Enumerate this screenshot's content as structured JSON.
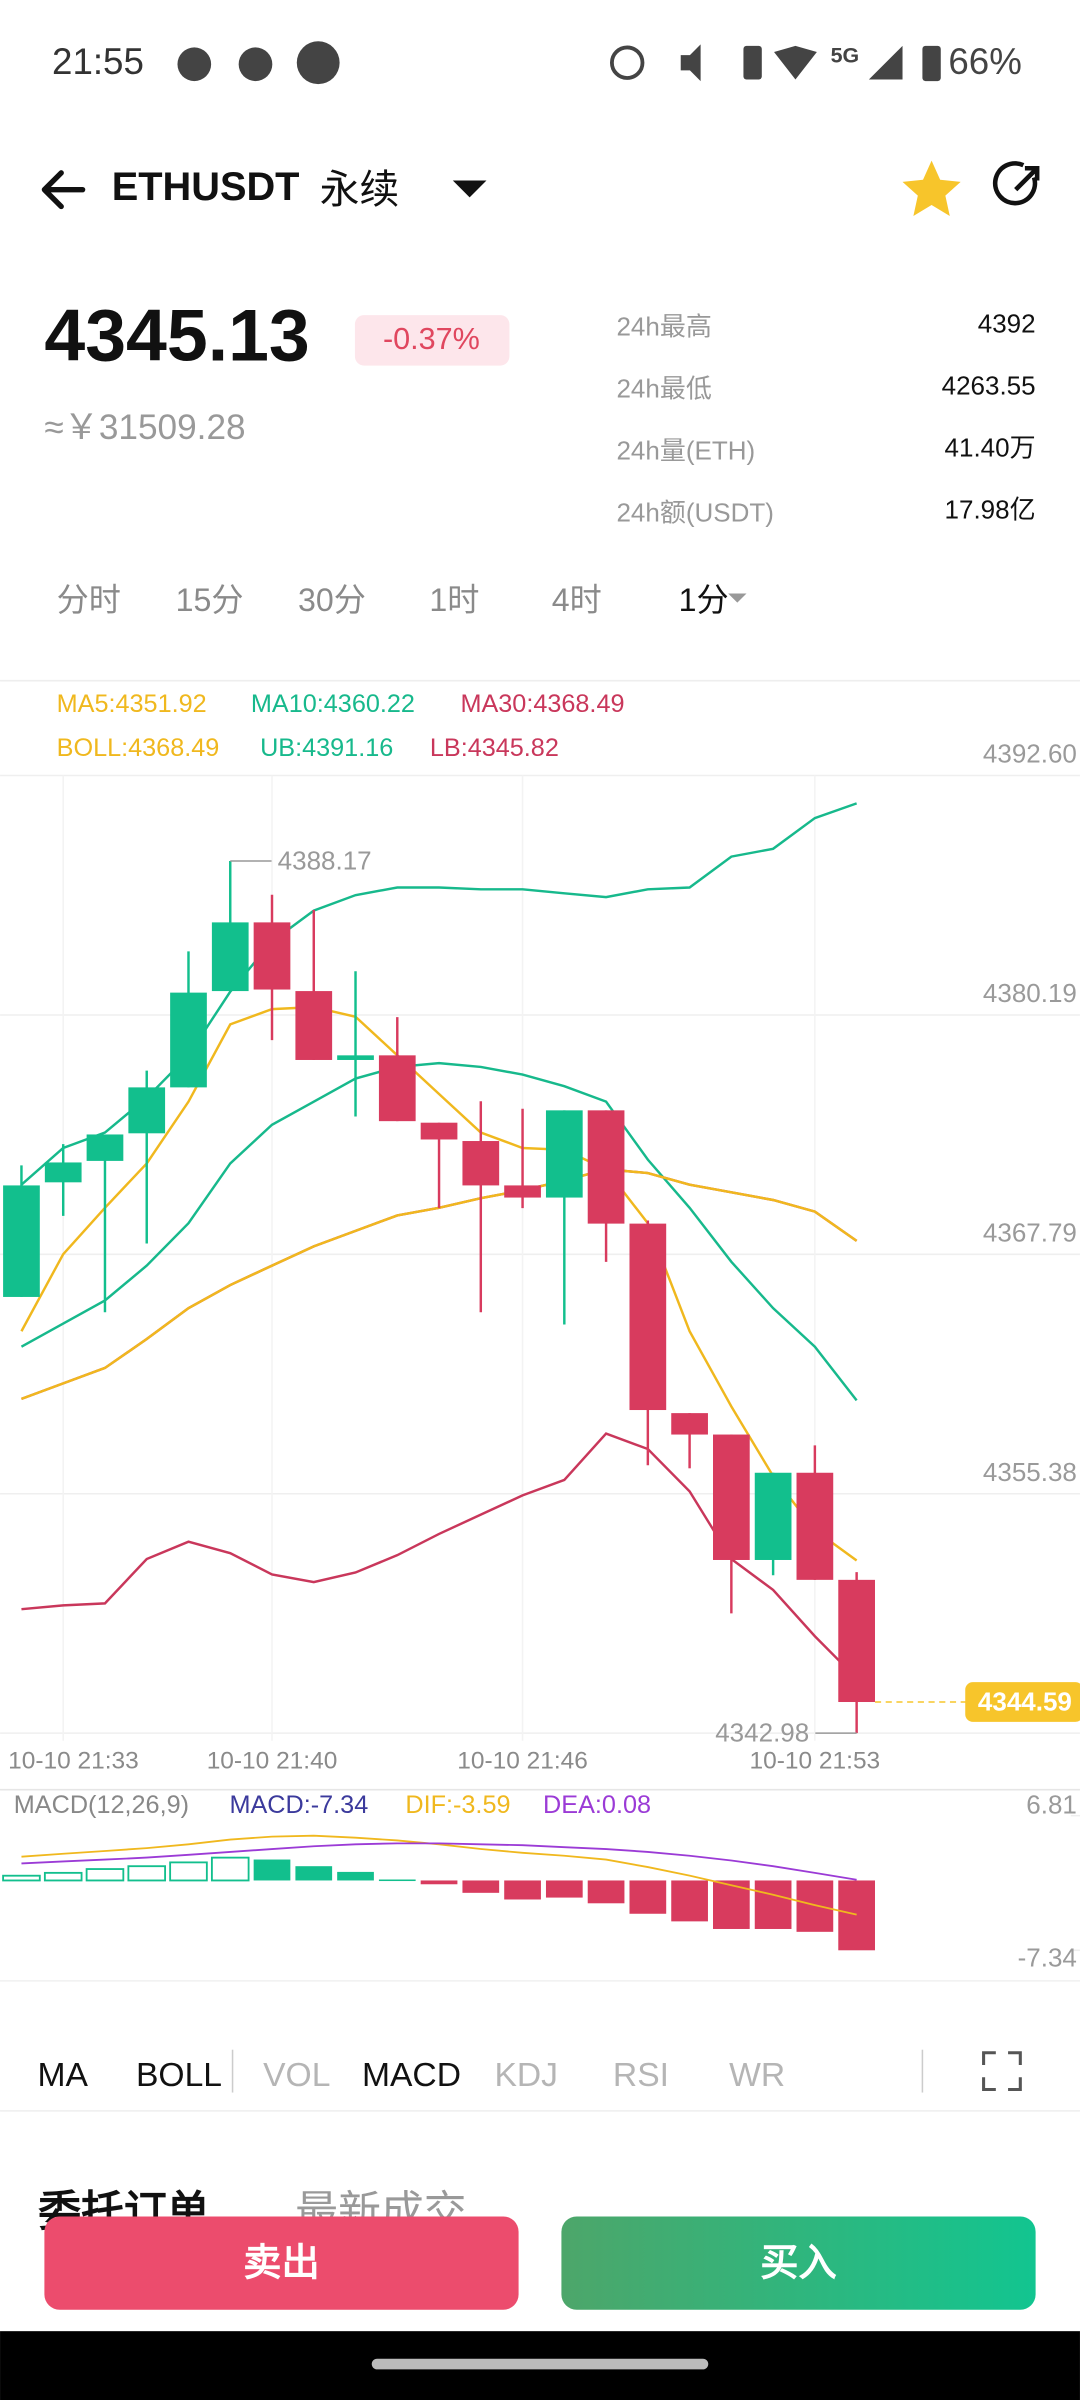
{
  "status_bar": {
    "time": "21:55",
    "network": "5G",
    "battery": "66%"
  },
  "header": {
    "symbol": "ETHUSDT",
    "contract": "永续"
  },
  "ticker": {
    "price": "4345.13",
    "change": "-0.37%",
    "fiat": "≈￥31509.28"
  },
  "stats": [
    {
      "label": "24h最高",
      "value": "4392"
    },
    {
      "label": "24h最低",
      "value": "4263.55"
    },
    {
      "label": "24h量(ETH)",
      "value": "41.40万"
    },
    {
      "label": "24h额(USDT)",
      "value": "17.98亿"
    }
  ],
  "intervals": {
    "items": [
      "分时",
      "15分",
      "30分",
      "1时",
      "4时",
      "1分"
    ],
    "active": 5
  },
  "chart_data": [
    {
      "type": "candlestick",
      "up_color": "#12bf8d",
      "down_color": "#d83b5e",
      "categories": [
        null,
        "10-10 21:33",
        null,
        null,
        null,
        null,
        "10-10 21:40",
        null,
        null,
        null,
        null,
        null,
        "10-10 21:46",
        null,
        null,
        null,
        null,
        null,
        null,
        "10-10 21:53",
        null
      ],
      "open": [
        4365.58,
        4371.52,
        4372.63,
        4374.06,
        4376.44,
        4381.43,
        4384.99,
        4381.43,
        4377.86,
        4378.1,
        4374.61,
        4373.66,
        4371.36,
        4370.73,
        4375.25,
        4369.38,
        4359.56,
        4358.45,
        4351.95,
        4356.47,
        4350.92
      ],
      "high": [
        4372.4,
        4373.5,
        4374.0,
        4377.31,
        4383.49,
        4388.17,
        4386.42,
        4385.63,
        4382.46,
        4380.08,
        4374.61,
        4375.72,
        4375.33,
        4375.25,
        4375.25,
        4369.54,
        4359.56,
        4358.45,
        4356.47,
        4357.89,
        4351.32
      ],
      "low": [
        4365.58,
        4369.78,
        4364.79,
        4368.35,
        4376.44,
        4381.43,
        4378.89,
        4377.86,
        4374.93,
        4374.69,
        4370.18,
        4364.79,
        4370.18,
        4364.15,
        4367.4,
        4356.86,
        4356.7,
        4349.18,
        4351.16,
        4350.92,
        4342.98
      ],
      "close": [
        4371.36,
        4372.55,
        4374.0,
        4376.44,
        4381.35,
        4384.99,
        4381.51,
        4377.86,
        4378.1,
        4374.69,
        4373.74,
        4371.36,
        4370.73,
        4375.25,
        4369.38,
        4359.72,
        4358.45,
        4351.95,
        4356.47,
        4350.92,
        4344.59
      ],
      "series": [
        {
          "name": "MA5:4351.92",
          "color": "#f0b81e",
          "values": [
            4363.8,
            4367.8,
            4370.2,
            4372.5,
            4375.7,
            4379.7,
            4380.5,
            4380.6,
            4380.1,
            4378.1,
            4376.1,
            4374.1,
            4373.3,
            4373.2,
            4372.2,
            4369.4,
            4363.8,
            4359.9,
            4356.3,
            4353.5,
            4351.92
          ]
        },
        {
          "name": "MA10:4360.22",
          "color": "#17b98c",
          "values": [
            4363.0,
            4364.2,
            4365.4,
            4367.2,
            4369.4,
            4372.5,
            4374.5,
            4375.7,
            4376.9,
            4377.5,
            4377.7,
            4377.5,
            4377.1,
            4376.5,
            4375.7,
            4372.7,
            4370.2,
            4367.4,
            4365.0,
            4363.0,
            4360.22
          ]
        },
        {
          "name": "MA30:4368.49",
          "color": "#c9375b",
          "values": [
            4360.3,
            4361.1,
            4361.9,
            4363.4,
            4365.0,
            4366.2,
            4367.2,
            4368.2,
            4369.0,
            4369.8,
            4370.2,
            4370.7,
            4371.1,
            4371.6,
            4372.2,
            4372.0,
            4371.4,
            4371.0,
            4370.6,
            4370.0,
            4368.49
          ]
        },
        {
          "name": "BOLL:4368.49",
          "color": "#f0b81e",
          "values": [
            4360.3,
            4361.1,
            4361.9,
            4363.4,
            4365.0,
            4366.2,
            4367.2,
            4368.2,
            4369.0,
            4369.8,
            4370.2,
            4370.7,
            4371.1,
            4371.6,
            4372.2,
            4372.0,
            4371.4,
            4371.0,
            4370.6,
            4370.0,
            4368.49
          ]
        },
        {
          "name": "UB:4391.16",
          "color": "#17b98c",
          "values": [
            4371.4,
            4373.3,
            4374.1,
            4375.9,
            4378.1,
            4381.4,
            4384.0,
            4385.6,
            4386.4,
            4386.8,
            4386.8,
            4386.7,
            4386.7,
            4386.5,
            4386.3,
            4386.7,
            4386.8,
            4388.4,
            4388.8,
            4390.4,
            4391.16
          ]
        },
        {
          "name": "LB:4345.82",
          "color": "#c9375b",
          "values": [
            4349.4,
            4349.6,
            4349.7,
            4352.0,
            4352.9,
            4352.3,
            4351.2,
            4350.8,
            4351.3,
            4352.2,
            4353.3,
            4354.3,
            4355.3,
            4356.1,
            4358.5,
            4357.7,
            4355.5,
            4352.0,
            4350.4,
            4348.0,
            4345.82
          ]
        }
      ],
      "ylim": [
        4342.98,
        4392.6
      ],
      "yticks": [
        {
          "value": 4392.6,
          "label": "4392.60"
        },
        4380.19,
        4367.79,
        4355.38,
        4342.98
      ],
      "high_marker": 4388.17,
      "low_marker": 4342.98,
      "last_price": 4344.59,
      "last_price_color": "#f7c52b",
      "grid": true
    },
    {
      "type": "macd",
      "title": "MACD(12,26,9)",
      "series": [
        {
          "name": "MACD:-7.34",
          "color": "#3b3a9c",
          "values": [
            0.5,
            0.8,
            1.2,
            1.5,
            1.9,
            2.4,
            2.2,
            1.5,
            0.9,
            0.1,
            -0.4,
            -1.3,
            -2.0,
            -1.8,
            -2.4,
            -3.5,
            -4.3,
            -5.1,
            -5.1,
            -5.4,
            -7.34
          ]
        },
        {
          "name": "DIF:-3.59",
          "color": "#f0b81e",
          "values": [
            2.5,
            2.8,
            3.1,
            3.4,
            3.8,
            4.3,
            4.6,
            4.7,
            4.5,
            4.2,
            3.8,
            3.3,
            2.9,
            2.6,
            2.2,
            1.4,
            0.5,
            -0.5,
            -1.5,
            -2.6,
            -3.59
          ]
        },
        {
          "name": "DEA:0.08",
          "color": "#9b3bd6",
          "values": [
            1.8,
            2.0,
            2.2,
            2.4,
            2.7,
            3.0,
            3.3,
            3.6,
            3.8,
            3.9,
            3.9,
            3.8,
            3.7,
            3.5,
            3.3,
            3.0,
            2.6,
            2.1,
            1.5,
            0.8,
            0.08
          ]
        }
      ],
      "ylim": [
        -7.34,
        6.81
      ],
      "yticks": [
        6.81,
        -7.34
      ]
    }
  ],
  "indicators": {
    "items": [
      "MA",
      "BOLL",
      "VOL",
      "MACD",
      "KDJ",
      "RSI",
      "WR"
    ],
    "active": [
      0,
      1,
      3
    ]
  },
  "order_tabs": [
    "委托订单",
    "最新成交"
  ],
  "actions": {
    "sell": "卖出",
    "buy": "买入"
  }
}
